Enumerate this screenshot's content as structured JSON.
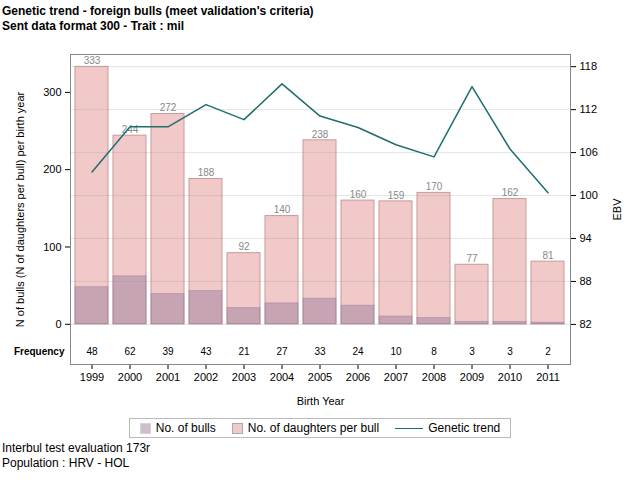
{
  "chart_data": {
    "type": "bar",
    "title": "Genetic trend - foreign bulls (meet validation's criteria)",
    "subtitle": "Sent data format 300 - Trait : mil",
    "caption": [
      "Interbul test evaluation 173r",
      "Population : HRV - HOL"
    ],
    "x_label": "Birth Year",
    "y_label": "N of bulls (N of daughters per bull) per birth year",
    "y2_label": "EBV",
    "annotations": [
      "Frequency"
    ],
    "categories": [
      "1999",
      "2000",
      "2001",
      "2002",
      "2003",
      "2004",
      "2005",
      "2006",
      "2007",
      "2008",
      "2009",
      "2010",
      "2011"
    ],
    "series": [
      {
        "name": "No. of bulls",
        "type": "bar",
        "color": "#9c7fa0",
        "values": [
          48,
          62,
          39,
          43,
          21,
          27,
          33,
          24,
          10,
          8,
          3,
          3,
          2
        ]
      },
      {
        "name": "No. of daughters per bull",
        "type": "bar",
        "color": "#f2c9c9",
        "data_labels": true,
        "values": [
          333,
          244,
          272,
          188,
          92,
          140,
          238,
          160,
          159,
          170,
          77,
          162,
          81
        ]
      },
      {
        "name": "Genetic trend",
        "type": "line",
        "color": "#1f6e6e",
        "axis": "y2",
        "values": [
          103.3,
          109.6,
          109.6,
          112.7,
          110.6,
          115.6,
          111.1,
          109.5,
          107.1,
          105.4,
          115.2,
          106.5,
          100.4
        ]
      }
    ],
    "ylim": [
      -52,
      349
    ],
    "yticks": [
      0,
      100,
      200,
      300
    ],
    "y2lim": [
      76.4,
      119.7
    ],
    "y2ticks": [
      82,
      88,
      94,
      100,
      106,
      112,
      118
    ],
    "grid": true,
    "legend": "bottom"
  }
}
